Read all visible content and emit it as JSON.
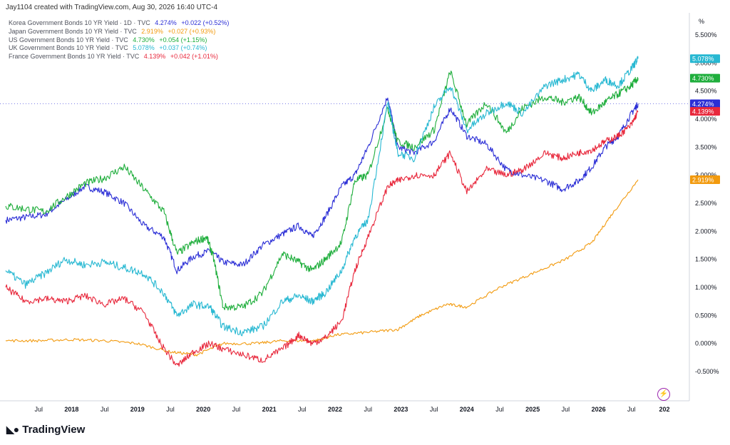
{
  "header": {
    "attribution": "Jay1104 created with TradingView.com, Aug 30, 2026 16:40 UTC-4"
  },
  "legend": [
    {
      "name": "Korea Government Bonds 10 YR Yield · 1D · TVC",
      "value": "4.274%",
      "change": "+0.022 (+0.52%)",
      "color": "#2b2ed6"
    },
    {
      "name": "Japan Government Bonds 10 YR Yield · TVC",
      "value": "2.919%",
      "change": "+0.027 (+0.93%)",
      "color": "#f29a0e"
    },
    {
      "name": "US Government Bonds 10 YR Yield · TVC",
      "value": "4.730%",
      "change": "+0.054 (+1.15%)",
      "color": "#1fae3c"
    },
    {
      "name": "UK Government Bonds 10 YR Yield · TVC",
      "value": "5.078%",
      "change": "+0.037 (+0.74%)",
      "color": "#27b8d2"
    },
    {
      "name": "France Government Bonds 10 YR Yield · TVC",
      "value": "4.139%",
      "change": "+0.042 (+1.01%)",
      "color": "#e8283c"
    }
  ],
  "footer": {
    "brand": "TradingView"
  },
  "chart_data": {
    "type": "line",
    "yunit": "%",
    "ylim": [
      -0.8,
      5.85
    ],
    "xlim": [
      2017.0,
      2027.0
    ],
    "y_ticks": [
      "5.500%",
      "5.000%",
      "4.500%",
      "4.000%",
      "3.500%",
      "3.000%",
      "2.500%",
      "2.000%",
      "1.500%",
      "1.000%",
      "0.500%",
      "0.000%",
      "-0.500%"
    ],
    "x_ticks": [
      "Jul",
      "2018",
      "Jul",
      "2019",
      "Jul",
      "2020",
      "Jul",
      "2021",
      "Jul",
      "2022",
      "Jul",
      "2023",
      "Jul",
      "2024",
      "Jul",
      "2025",
      "Jul",
      "2026",
      "Jul",
      "202"
    ],
    "grid": false,
    "legend_position": "top-left",
    "price_line_y": 4.274,
    "series": [
      {
        "name": "Korea Government Bonds 10 YR Yield",
        "color": "#2b2ed6",
        "last_label": "4.274%",
        "x": [
          2017.0,
          2017.3,
          2017.6,
          2017.9,
          2018.2,
          2018.5,
          2018.8,
          2019.1,
          2019.4,
          2019.6,
          2019.85,
          2020.1,
          2020.3,
          2020.6,
          2020.9,
          2021.2,
          2021.45,
          2021.65,
          2021.85,
          2022.1,
          2022.3,
          2022.5,
          2022.8,
          2022.95,
          2023.2,
          2023.5,
          2023.75,
          2024.0,
          2024.3,
          2024.6,
          2024.85,
          2025.2,
          2025.45,
          2025.7,
          2025.9,
          2026.1,
          2026.3,
          2026.5,
          2026.6
        ],
        "y": [
          2.2,
          2.25,
          2.3,
          2.55,
          2.8,
          2.7,
          2.5,
          2.1,
          1.9,
          1.3,
          1.55,
          1.65,
          1.45,
          1.4,
          1.75,
          1.95,
          2.1,
          1.9,
          2.25,
          2.8,
          3.0,
          3.5,
          4.4,
          3.5,
          3.4,
          3.6,
          4.2,
          3.7,
          3.55,
          3.1,
          3.0,
          2.9,
          2.75,
          2.9,
          3.15,
          3.5,
          3.7,
          4.1,
          4.274
        ]
      },
      {
        "name": "Japan Government Bonds 10 YR Yield",
        "color": "#f29a0e",
        "last_label": "2.919%",
        "x": [
          2017.0,
          2017.5,
          2018.0,
          2018.5,
          2019.0,
          2019.5,
          2019.9,
          2020.3,
          2020.8,
          2021.2,
          2021.7,
          2022.0,
          2022.5,
          2022.95,
          2023.3,
          2023.7,
          2024.0,
          2024.5,
          2025.0,
          2025.5,
          2025.9,
          2026.2,
          2026.6
        ],
        "y": [
          0.05,
          0.05,
          0.07,
          0.05,
          0.0,
          -0.15,
          -0.2,
          0.0,
          0.0,
          0.05,
          0.05,
          0.15,
          0.2,
          0.25,
          0.5,
          0.7,
          0.65,
          1.0,
          1.25,
          1.5,
          1.8,
          2.3,
          2.919
        ]
      },
      {
        "name": "US Government Bonds 10 YR Yield",
        "color": "#1fae3c",
        "last_label": "4.730%",
        "x": [
          2017.0,
          2017.3,
          2017.6,
          2017.9,
          2018.2,
          2018.5,
          2018.8,
          2019.1,
          2019.4,
          2019.6,
          2019.85,
          2020.05,
          2020.15,
          2020.3,
          2020.6,
          2020.9,
          2021.2,
          2021.45,
          2021.65,
          2021.85,
          2022.1,
          2022.3,
          2022.5,
          2022.8,
          2022.95,
          2023.2,
          2023.5,
          2023.75,
          2024.0,
          2024.3,
          2024.6,
          2024.85,
          2025.2,
          2025.45,
          2025.7,
          2025.9,
          2026.1,
          2026.3,
          2026.5,
          2026.6
        ],
        "y": [
          2.45,
          2.4,
          2.35,
          2.6,
          2.85,
          2.95,
          3.15,
          2.75,
          2.35,
          1.6,
          1.8,
          1.9,
          1.55,
          0.65,
          0.65,
          0.9,
          1.6,
          1.45,
          1.3,
          1.5,
          1.8,
          2.9,
          3.0,
          4.2,
          3.6,
          3.5,
          3.8,
          4.85,
          3.9,
          4.3,
          3.75,
          4.2,
          4.4,
          4.3,
          4.4,
          4.1,
          4.3,
          4.45,
          4.6,
          4.73
        ]
      },
      {
        "name": "UK Government Bonds 10 YR Yield",
        "color": "#27b8d2",
        "last_label": "5.078%",
        "x": [
          2017.0,
          2017.3,
          2017.6,
          2017.9,
          2018.2,
          2018.5,
          2018.8,
          2019.1,
          2019.4,
          2019.6,
          2019.85,
          2020.1,
          2020.3,
          2020.6,
          2020.9,
          2021.2,
          2021.45,
          2021.65,
          2021.85,
          2022.1,
          2022.3,
          2022.5,
          2022.8,
          2022.95,
          2023.2,
          2023.5,
          2023.75,
          2024.0,
          2024.3,
          2024.6,
          2024.85,
          2025.2,
          2025.45,
          2025.7,
          2025.9,
          2026.1,
          2026.3,
          2026.5,
          2026.6
        ],
        "y": [
          1.3,
          1.05,
          1.25,
          1.5,
          1.4,
          1.45,
          1.35,
          1.25,
          0.9,
          0.5,
          0.7,
          0.65,
          0.3,
          0.2,
          0.3,
          0.75,
          0.85,
          0.75,
          0.9,
          1.3,
          1.9,
          2.2,
          4.3,
          3.4,
          3.3,
          4.2,
          4.6,
          3.8,
          4.1,
          4.3,
          4.1,
          4.6,
          4.7,
          4.8,
          4.5,
          4.7,
          4.6,
          4.9,
          5.078
        ]
      },
      {
        "name": "France Government Bonds 10 YR Yield",
        "color": "#e8283c",
        "last_label": "4.139%",
        "x": [
          2017.0,
          2017.3,
          2017.6,
          2017.9,
          2018.2,
          2018.5,
          2018.8,
          2019.1,
          2019.35,
          2019.6,
          2019.85,
          2020.1,
          2020.3,
          2020.6,
          2020.9,
          2021.2,
          2021.45,
          2021.65,
          2021.85,
          2022.1,
          2022.3,
          2022.5,
          2022.8,
          2022.95,
          2023.2,
          2023.5,
          2023.75,
          2024.0,
          2024.3,
          2024.6,
          2024.85,
          2025.2,
          2025.45,
          2025.7,
          2025.9,
          2026.1,
          2026.3,
          2026.5,
          2026.6
        ],
        "y": [
          1.0,
          0.75,
          0.8,
          0.75,
          0.85,
          0.7,
          0.8,
          0.55,
          0.0,
          -0.4,
          -0.15,
          0.0,
          -0.1,
          -0.2,
          -0.3,
          -0.1,
          0.15,
          0.0,
          0.1,
          0.4,
          1.3,
          1.9,
          2.8,
          2.9,
          3.0,
          3.0,
          3.4,
          2.7,
          3.1,
          3.0,
          3.1,
          3.4,
          3.3,
          3.4,
          3.45,
          3.6,
          3.7,
          3.9,
          4.139
        ]
      }
    ]
  }
}
